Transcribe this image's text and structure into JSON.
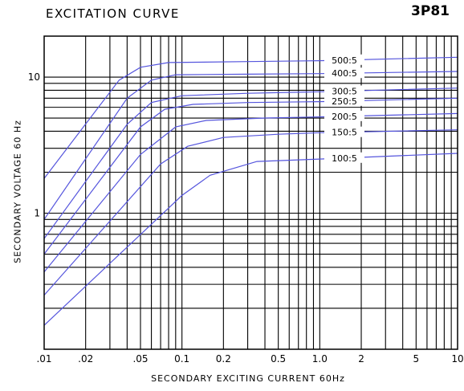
{
  "header": {
    "title": "EXCITATION CURVE",
    "model": "3P81"
  },
  "chart_data": {
    "type": "line",
    "title": "EXCITATION CURVE",
    "model": "3P81",
    "xlabel": "SECONDARY EXCITING CURRENT 60Hz",
    "ylabel": "SECONDARY VOLTAGE 60 Hz",
    "x_scale": "log",
    "y_scale": "log",
    "xlim": [
      0.01,
      10
    ],
    "ylim": [
      0.1,
      20
    ],
    "grid": true,
    "x_ticks": [
      {
        "value": 0.01,
        "label": ".01"
      },
      {
        "value": 0.02,
        "label": ".02"
      },
      {
        "value": 0.05,
        "label": ".05"
      },
      {
        "value": 0.1,
        "label": "0.1"
      },
      {
        "value": 0.2,
        "label": "0.2"
      },
      {
        "value": 0.5,
        "label": "0.5"
      },
      {
        "value": 1,
        "label": "1.0"
      },
      {
        "value": 2,
        "label": "2"
      },
      {
        "value": 5,
        "label": "5"
      },
      {
        "value": 10,
        "label": "10"
      }
    ],
    "y_ticks": [
      {
        "value": 1,
        "label": "1"
      },
      {
        "value": 10,
        "label": "10"
      }
    ],
    "line_color": "#5555dd",
    "series": [
      {
        "name": "500:5",
        "points": [
          [
            0.01,
            1.8
          ],
          [
            0.035,
            9.5
          ],
          [
            0.05,
            11.8
          ],
          [
            0.08,
            12.8
          ],
          [
            0.3,
            13.0
          ],
          [
            1,
            13.2
          ],
          [
            10,
            14.0
          ]
        ]
      },
      {
        "name": "400:5",
        "points": [
          [
            0.01,
            0.9
          ],
          [
            0.04,
            7.0
          ],
          [
            0.06,
            9.5
          ],
          [
            0.09,
            10.4
          ],
          [
            0.3,
            10.5
          ],
          [
            1,
            10.6
          ],
          [
            10,
            11.0
          ]
        ]
      },
      {
        "name": "300:5",
        "points": [
          [
            0.01,
            0.65
          ],
          [
            0.04,
            4.5
          ],
          [
            0.06,
            6.5
          ],
          [
            0.1,
            7.3
          ],
          [
            0.3,
            7.6
          ],
          [
            1,
            7.8
          ],
          [
            10,
            8.3
          ]
        ]
      },
      {
        "name": "250:5",
        "points": [
          [
            0.01,
            0.5
          ],
          [
            0.05,
            4.3
          ],
          [
            0.075,
            5.8
          ],
          [
            0.12,
            6.3
          ],
          [
            0.3,
            6.5
          ],
          [
            1,
            6.6
          ],
          [
            10,
            7.0
          ]
        ]
      },
      {
        "name": "200:5",
        "points": [
          [
            0.01,
            0.37
          ],
          [
            0.05,
            2.7
          ],
          [
            0.09,
            4.3
          ],
          [
            0.15,
            4.8
          ],
          [
            0.4,
            5.0
          ],
          [
            1,
            5.1
          ],
          [
            10,
            5.4
          ]
        ]
      },
      {
        "name": "150:5",
        "points": [
          [
            0.01,
            0.25
          ],
          [
            0.07,
            2.3
          ],
          [
            0.11,
            3.1
          ],
          [
            0.2,
            3.6
          ],
          [
            0.5,
            3.8
          ],
          [
            1,
            3.9
          ],
          [
            10,
            4.1
          ]
        ]
      },
      {
        "name": "100:5",
        "points": [
          [
            0.01,
            0.15
          ],
          [
            0.1,
            1.35
          ],
          [
            0.16,
            1.9
          ],
          [
            0.35,
            2.4
          ],
          [
            1,
            2.5
          ],
          [
            10,
            2.75
          ]
        ]
      }
    ]
  }
}
